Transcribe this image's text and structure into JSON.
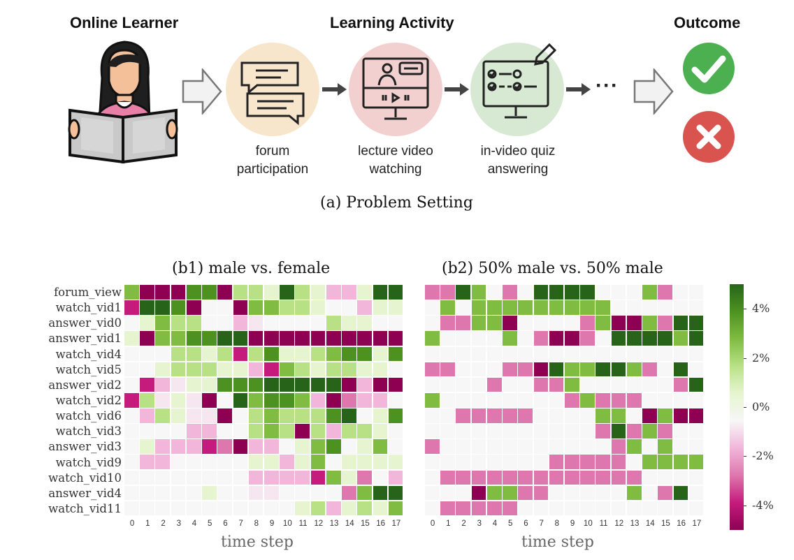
{
  "diagram": {
    "headers": {
      "learner": "Online Learner",
      "activity": "Learning Activity",
      "outcome": "Outcome"
    },
    "activities": [
      {
        "line1": "forum",
        "line2": "participation",
        "icon": "forum-chat-icon",
        "color": "#f8e6cc"
      },
      {
        "line1": "lecture video",
        "line2": "watching",
        "icon": "video-lecture-icon",
        "color": "#f2d0cf"
      },
      {
        "line1": "in-video quiz",
        "line2": "answering",
        "icon": "quiz-checklist-icon",
        "color": "#d7e9d3"
      }
    ],
    "ellipsis": "···",
    "outcomes": [
      {
        "icon": "check-icon",
        "color": "#4caf50"
      },
      {
        "icon": "cross-icon",
        "color": "#d9534f"
      }
    ],
    "caption_a": "(a) Problem Setting"
  },
  "chart_data": {
    "type": "heatmap",
    "rows": [
      "forum_view",
      "watch_vid1",
      "answer_vid0",
      "answer_vid1",
      "watch_vid4",
      "watch_vid5",
      "answer_vid2",
      "watch_vid2",
      "watch_vid6",
      "watch_vid3",
      "answer_vid3",
      "watch_vid9",
      "watch_vid10",
      "answer_vid4",
      "watch_vid11"
    ],
    "columns": [
      "0",
      "1",
      "2",
      "3",
      "4",
      "5",
      "6",
      "7",
      "8",
      "9",
      "10",
      "11",
      "12",
      "13",
      "14",
      "15",
      "16",
      "17"
    ],
    "xlabel": "time step",
    "colorbar": {
      "min": -5,
      "max": 5,
      "ticks": [
        4,
        2,
        0,
        -2,
        -4
      ],
      "tick_labels": [
        "4%",
        "2%",
        "0%",
        "-2%",
        "-4%"
      ],
      "unit": "%"
    },
    "colors": {
      "neg_strong": "#8e0152",
      "neg_mid": "#c51b7d",
      "neg_light": "#de77ae",
      "neg_pale": "#f1b6da",
      "neutral": "#f7f7f7",
      "pos_pale": "#e6f5d0",
      "pos_light": "#b8e186",
      "pos_mid": "#7fbc41",
      "pos_strong": "#4d9221",
      "pos_dark": "#276419"
    },
    "panels": [
      {
        "title": "(b1) male vs. female",
        "values": [
          [
            3,
            -5,
            -5,
            -5,
            4,
            4,
            -5,
            2,
            2,
            1,
            5,
            2,
            1,
            -2,
            -2,
            1,
            5,
            5
          ],
          [
            -4,
            5,
            5,
            4,
            -5,
            0,
            0,
            -5,
            3,
            3,
            2,
            2,
            1,
            0,
            0,
            -1,
            1,
            1
          ],
          [
            0,
            1,
            3,
            2,
            2,
            0,
            0,
            -1,
            -0.5,
            0,
            0,
            0,
            0,
            2,
            1,
            1,
            0,
            0
          ],
          [
            0.5,
            -5,
            3,
            3,
            4,
            4,
            5,
            5,
            -5,
            -5,
            -5,
            -5,
            -5,
            -5,
            -5,
            -5,
            -5,
            -5
          ],
          [
            0,
            0,
            0,
            2,
            2,
            1,
            2,
            -4,
            2,
            4,
            1,
            1,
            2,
            3,
            4,
            4,
            1,
            4
          ],
          [
            0,
            0,
            1,
            2,
            2,
            2,
            1,
            1,
            -2,
            -4,
            3,
            2,
            1,
            2,
            2,
            1,
            1,
            0
          ],
          [
            0,
            -4,
            -1,
            -0.5,
            1,
            1,
            4,
            4,
            4,
            5,
            5,
            5,
            5,
            5,
            -5,
            -2,
            -5,
            -5
          ],
          [
            -4,
            2,
            -0.5,
            1,
            -0.5,
            -5,
            0,
            5,
            3,
            4,
            4,
            3,
            -2,
            -5,
            -3,
            -1,
            -1,
            0
          ],
          [
            0,
            -1,
            2,
            1,
            -0.5,
            -0.5,
            -5,
            0,
            2,
            3,
            2,
            2,
            2,
            4,
            5,
            0,
            1,
            4
          ],
          [
            0,
            0,
            0,
            0,
            -1,
            -1,
            0,
            0,
            2,
            3,
            2,
            -5,
            2,
            -2,
            2,
            2,
            1,
            0
          ],
          [
            0,
            1,
            -1,
            -1,
            -1,
            -4,
            -3,
            -5,
            -2,
            -1,
            0,
            1,
            3,
            4,
            0,
            1,
            3,
            0
          ],
          [
            0,
            -2,
            -2,
            0,
            0,
            0,
            0,
            0,
            1,
            1,
            -1,
            1,
            3,
            0,
            1,
            1,
            1,
            1
          ],
          [
            0,
            0,
            0,
            0,
            0,
            0,
            0,
            0,
            -2,
            -1,
            -1,
            -1,
            -4,
            3,
            1,
            -3,
            0,
            -2
          ],
          [
            0,
            0,
            0,
            0,
            0,
            1,
            0,
            0,
            -0.5,
            -0.5,
            0,
            0,
            0,
            0,
            -3,
            3,
            5,
            5
          ],
          [
            0,
            0,
            0,
            0,
            0,
            0,
            0,
            0,
            0,
            0,
            0,
            1,
            2,
            -1,
            1,
            2,
            1,
            3
          ]
        ]
      },
      {
        "title": "(b2) 50% male vs. 50% male",
        "values": [
          [
            -3,
            -3,
            5,
            3,
            0,
            -3,
            0,
            5,
            5,
            5,
            5,
            0,
            0,
            0,
            3,
            -3,
            0,
            0
          ],
          [
            0,
            3,
            0,
            3,
            3,
            3,
            3,
            3,
            3,
            3,
            3,
            3,
            0,
            0,
            0,
            0,
            0,
            0
          ],
          [
            0,
            -3,
            -3,
            3,
            3,
            -5,
            0,
            0,
            0,
            0,
            -3,
            3,
            -5,
            -5,
            3,
            -3,
            5,
            5
          ],
          [
            3,
            0,
            0,
            0,
            0,
            3,
            0,
            -3,
            -5,
            -5,
            -3,
            0,
            5,
            5,
            5,
            5,
            3,
            5
          ],
          [
            0,
            0,
            0,
            0,
            0,
            0,
            0,
            0,
            0,
            0,
            0,
            0,
            0,
            0,
            0,
            0,
            0,
            0
          ],
          [
            -3,
            -3,
            0,
            0,
            0,
            -3,
            -3,
            -5,
            5,
            3,
            3,
            5,
            5,
            3,
            -3,
            0,
            5,
            0
          ],
          [
            0,
            0,
            0,
            0,
            -3,
            0,
            0,
            -3,
            -3,
            3,
            0,
            0,
            0,
            0,
            0,
            0,
            -3,
            5
          ],
          [
            3,
            0,
            0,
            0,
            0,
            0,
            0,
            0,
            0,
            -3,
            3,
            -3,
            -3,
            -3,
            0,
            0,
            0,
            0
          ],
          [
            0,
            0,
            -3,
            -3,
            -3,
            -3,
            -3,
            0,
            0,
            0,
            0,
            3,
            3,
            0,
            -5,
            3,
            -5,
            -5
          ],
          [
            0,
            0,
            0,
            0,
            0,
            0,
            0,
            0,
            0,
            0,
            0,
            -3,
            5,
            -3,
            3,
            -3,
            0,
            0
          ],
          [
            -3,
            0,
            0,
            0,
            0,
            0,
            0,
            0,
            0,
            0,
            0,
            0,
            -3,
            3,
            0,
            3,
            0,
            0
          ],
          [
            0,
            0,
            0,
            0,
            0,
            0,
            0,
            0,
            -3,
            -3,
            -3,
            -3,
            -3,
            0,
            3,
            3,
            3,
            3
          ],
          [
            0,
            -3,
            -3,
            -3,
            -3,
            -3,
            -3,
            -3,
            -3,
            -3,
            -3,
            -3,
            -3,
            -3,
            0,
            0,
            0,
            0
          ],
          [
            0,
            0,
            0,
            -5,
            3,
            3,
            -3,
            -3,
            0,
            0,
            0,
            0,
            0,
            3,
            0,
            -3,
            5,
            0
          ],
          [
            0,
            -3,
            -3,
            -3,
            -3,
            -3,
            0,
            0,
            0,
            0,
            0,
            0,
            0,
            0,
            0,
            0,
            0,
            0
          ]
        ]
      }
    ]
  }
}
